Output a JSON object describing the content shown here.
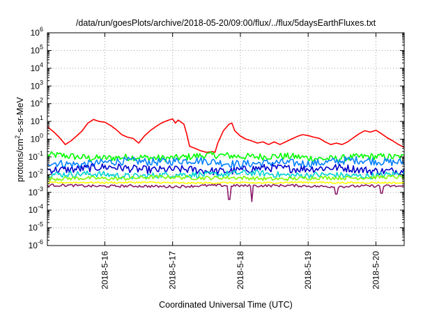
{
  "chart_data": {
    "type": "line",
    "title": "/data/run/goesPlots/archive/2018-05-20/09:00/flux/../flux/5daysEarthFluxes.txt",
    "xlabel": "Coordinated Universal Time (UTC)",
    "ylabel_parts": {
      "pre": "protons/cm",
      "sup": "2",
      "post": "-s-sr-MeV"
    },
    "yscale": "log",
    "ylim_exponents": [
      -6,
      6
    ],
    "y_ticks": [
      {
        "base": "10",
        "exp": "-6"
      },
      {
        "base": "10",
        "exp": "-5"
      },
      {
        "base": "10",
        "exp": "-4"
      },
      {
        "base": "10",
        "exp": "-3"
      },
      {
        "base": "10",
        "exp": "-2"
      },
      {
        "base": "10",
        "exp": "-1"
      },
      {
        "base": "10",
        "exp": "0"
      },
      {
        "base": "10",
        "exp": "1"
      },
      {
        "base": "10",
        "exp": "2"
      },
      {
        "base": "10",
        "exp": "3"
      },
      {
        "base": "10",
        "exp": "4"
      },
      {
        "base": "10",
        "exp": "5"
      },
      {
        "base": "10",
        "exp": "6"
      }
    ],
    "xlim_days": [
      "2018-05-15 03:40",
      "2018-05-20 10:00"
    ],
    "x_ticks": [
      "2018-5-16",
      "2018-5-17",
      "2018-5-18",
      "2018-5-19",
      "2018-5-20"
    ],
    "grid": true,
    "series": [
      {
        "color": "#ff0000",
        "points": [
          [
            "2018-05-15 03:40",
            5
          ],
          [
            "2018-05-15 06:00",
            2.5
          ],
          [
            "2018-05-15 08:00",
            1.2
          ],
          [
            "2018-05-15 10:00",
            0.5
          ],
          [
            "2018-05-15 12:00",
            0.8
          ],
          [
            "2018-05-15 14:00",
            1.5
          ],
          [
            "2018-05-15 16:00",
            3
          ],
          [
            "2018-05-15 18:00",
            8
          ],
          [
            "2018-05-15 20:00",
            13
          ],
          [
            "2018-05-15 22:00",
            10
          ],
          [
            "2018-05-16 00:00",
            9
          ],
          [
            "2018-05-16 02:00",
            6
          ],
          [
            "2018-05-16 04:00",
            3.5
          ],
          [
            "2018-05-16 06:00",
            1.8
          ],
          [
            "2018-05-16 08:00",
            1.3
          ],
          [
            "2018-05-16 10:00",
            1.1
          ],
          [
            "2018-05-16 12:00",
            0.6
          ],
          [
            "2018-05-16 14:00",
            1.5
          ],
          [
            "2018-05-16 16:00",
            3
          ],
          [
            "2018-05-16 18:00",
            5
          ],
          [
            "2018-05-16 20:00",
            8
          ],
          [
            "2018-05-16 22:00",
            11
          ],
          [
            "2018-05-17 00:00",
            14
          ],
          [
            "2018-05-17 01:00",
            8
          ],
          [
            "2018-05-17 02:00",
            12
          ],
          [
            "2018-05-17 04:00",
            7
          ],
          [
            "2018-05-17 05:00",
            2
          ],
          [
            "2018-05-17 06:00",
            0.4
          ],
          [
            "2018-05-17 08:00",
            0.3
          ],
          [
            "2018-05-17 10:00",
            0.22
          ],
          [
            "2018-05-17 12:00",
            0.18
          ],
          [
            "2018-05-17 14:00",
            0.2
          ],
          [
            "2018-05-17 15:00",
            0.18
          ],
          [
            "2018-05-17 16:00",
            0.6
          ],
          [
            "2018-05-17 18:00",
            3
          ],
          [
            "2018-05-17 20:00",
            7
          ],
          [
            "2018-05-17 21:00",
            8
          ],
          [
            "2018-05-17 22:00",
            3
          ],
          [
            "2018-05-18 00:00",
            1.5
          ],
          [
            "2018-05-18 02:00",
            1
          ],
          [
            "2018-05-18 04:00",
            0.8
          ],
          [
            "2018-05-18 06:00",
            0.6
          ],
          [
            "2018-05-18 08:00",
            0.7
          ],
          [
            "2018-05-18 10:00",
            0.5
          ],
          [
            "2018-05-18 12:00",
            0.7
          ],
          [
            "2018-05-18 14:00",
            0.5
          ],
          [
            "2018-05-18 16:00",
            0.7
          ],
          [
            "2018-05-18 18:00",
            1
          ],
          [
            "2018-05-18 20:00",
            1.4
          ],
          [
            "2018-05-18 22:00",
            1.8
          ],
          [
            "2018-05-19 00:00",
            1.6
          ],
          [
            "2018-05-19 02:00",
            1.3
          ],
          [
            "2018-05-19 04:00",
            1.1
          ],
          [
            "2018-05-19 06:00",
            0.7
          ],
          [
            "2018-05-19 08:00",
            0.5
          ],
          [
            "2018-05-19 10:00",
            0.6
          ],
          [
            "2018-05-19 12:00",
            0.5
          ],
          [
            "2018-05-19 14:00",
            0.7
          ],
          [
            "2018-05-19 16:00",
            1.2
          ],
          [
            "2018-05-19 18:00",
            2
          ],
          [
            "2018-05-19 20:00",
            3
          ],
          [
            "2018-05-19 22:00",
            2.5
          ],
          [
            "2018-05-20 00:00",
            3.2
          ],
          [
            "2018-05-20 02:00",
            2
          ],
          [
            "2018-05-20 04:00",
            1.2
          ],
          [
            "2018-05-20 06:00",
            0.8
          ],
          [
            "2018-05-20 08:00",
            0.5
          ],
          [
            "2018-05-20 10:00",
            0.35
          ]
        ]
      },
      {
        "color": "#00ff00",
        "level": 0.1,
        "spread": 0.22,
        "dips": []
      },
      {
        "color": "#0080ff",
        "level": 0.05,
        "spread": 0.25,
        "dips": []
      },
      {
        "color": "#0000cd",
        "level": 0.02,
        "spread": 0.25,
        "dips": []
      },
      {
        "color": "#00d4d4",
        "level": 0.01,
        "spread": 0.2,
        "dips": []
      },
      {
        "color": "#7cfc00",
        "level": 0.0065,
        "spread": 0.12,
        "dips": []
      },
      {
        "color": "#ffff00",
        "level": 0.0035,
        "spread": 0.05,
        "dips": []
      },
      {
        "color": "#8b1a6b",
        "level": 0.0023,
        "spread": 0.08,
        "dips": [
          [
            "2018-05-17 20:00",
            0.0004
          ],
          [
            "2018-05-18 04:00",
            0.0003
          ],
          [
            "2018-05-19 10:00",
            0.0008
          ],
          [
            "2018-05-20 02:00",
            0.0009
          ]
        ]
      }
    ]
  }
}
